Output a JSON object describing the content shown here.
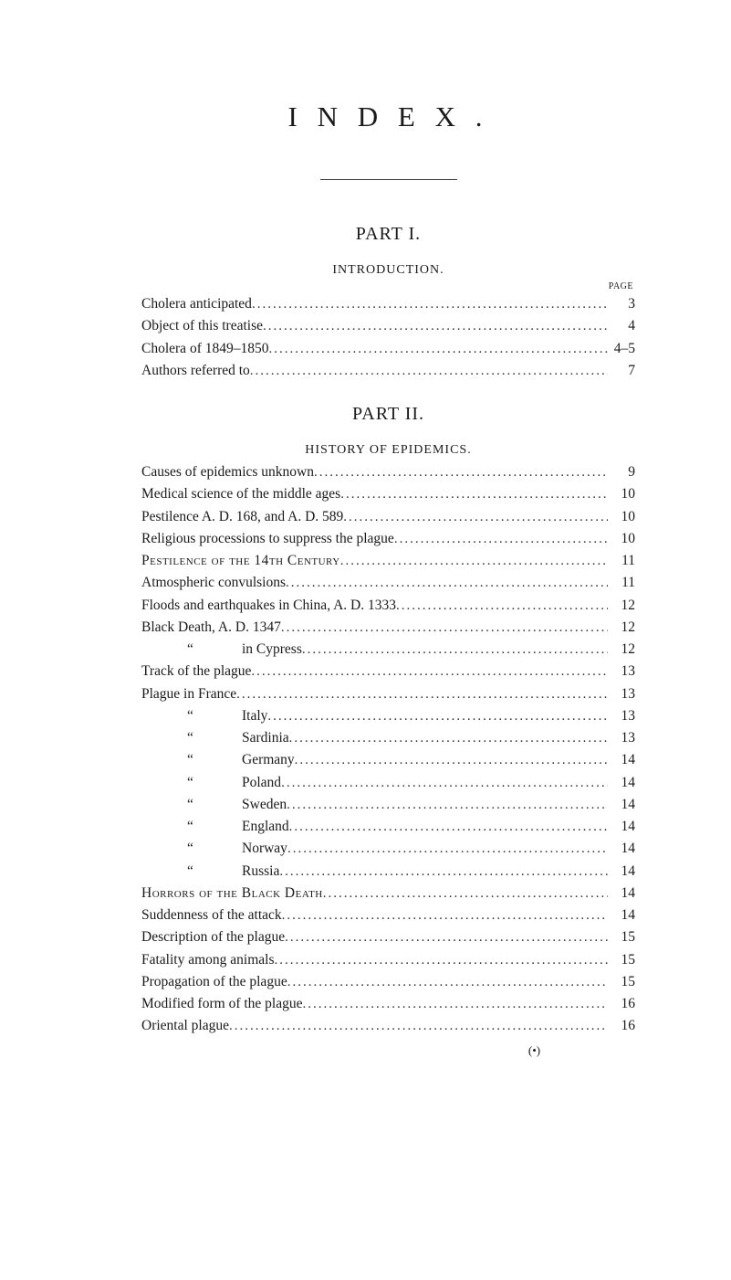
{
  "title": "I N D E X .",
  "page_label": "PAGE",
  "part1": {
    "heading": "PART I.",
    "section": "INTRODUCTION.",
    "entries": [
      {
        "text": "Cholera anticipated",
        "page": "3"
      },
      {
        "text": "Object of this treatise",
        "page": "4"
      },
      {
        "text": "Cholera of 1849–1850",
        "page": "4–5"
      },
      {
        "text": "Authors referred to",
        "page": "7"
      }
    ]
  },
  "part2": {
    "heading": "PART II.",
    "section": "HISTORY OF EPIDEMICS.",
    "entries": [
      {
        "text": "Causes of epidemics unknown",
        "page": "9"
      },
      {
        "text": "Medical science of the middle ages",
        "page": "10"
      },
      {
        "text": "Pestilence A. D. 168, and A. D. 589",
        "page": "10"
      },
      {
        "text": "Religious processions to suppress the plague",
        "page": "10"
      },
      {
        "text": "Pestilence of the 14th Century",
        "page": "11",
        "smallcaps": true
      },
      {
        "text": "Atmospheric convulsions",
        "page": "11"
      },
      {
        "text": "Floods and earthquakes in China, A. D. 1333",
        "page": "12"
      },
      {
        "text": "Black Death, A. D. 1347",
        "page": "12"
      },
      {
        "ditto": true,
        "text": "in Cypress",
        "page": "12"
      },
      {
        "text": "Track of the plague",
        "page": "13"
      },
      {
        "text": "Plague in France",
        "page": "13"
      },
      {
        "ditto": true,
        "text": "Italy",
        "page": "13"
      },
      {
        "ditto": true,
        "text": "Sardinia",
        "page": "13"
      },
      {
        "ditto": true,
        "text": "Germany",
        "page": "14"
      },
      {
        "ditto": true,
        "text": "Poland",
        "page": "14"
      },
      {
        "ditto": true,
        "text": "Sweden",
        "page": "14"
      },
      {
        "ditto": true,
        "text": "England",
        "page": "14"
      },
      {
        "ditto": true,
        "text": "Norway",
        "page": "14"
      },
      {
        "ditto": true,
        "text": "Russia",
        "page": "14"
      },
      {
        "text": "Horrors of the Black Death",
        "page": "14",
        "smallcaps": true
      },
      {
        "text": "Suddenness of the attack",
        "page": "14"
      },
      {
        "text": "Description of the plague",
        "page": "15"
      },
      {
        "text": "Fatality among animals",
        "page": "15"
      },
      {
        "text": "Propagation of the plague",
        "page": "15"
      },
      {
        "text": "Modified form of the plague",
        "page": "16"
      },
      {
        "text": "Oriental plague",
        "page": "16"
      }
    ]
  },
  "ditto_mark": "“",
  "paren_mark": "(•)",
  "dots": "......................................................................................................"
}
